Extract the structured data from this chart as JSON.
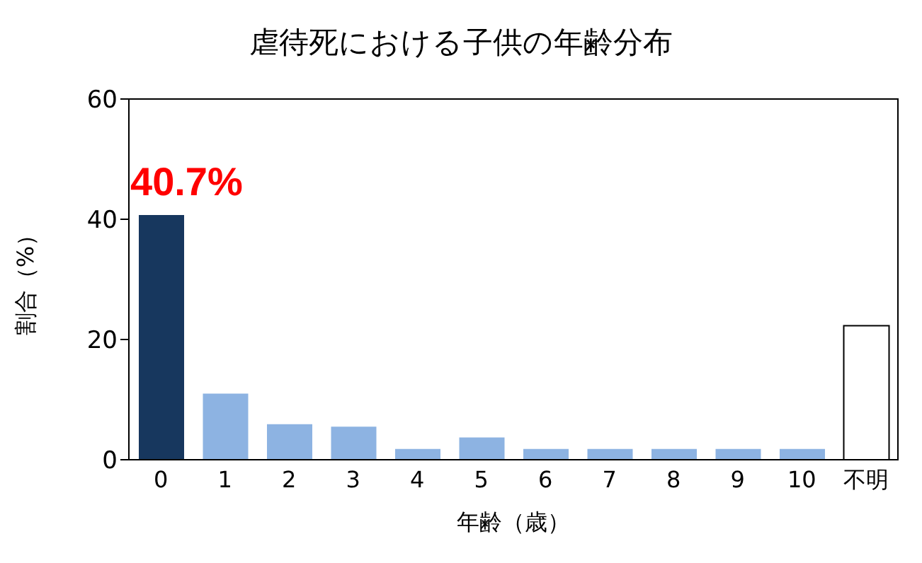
{
  "chart_data": {
    "type": "bar",
    "title": "虐待死における子供の年齢分布",
    "xlabel": "年齢（歳）",
    "ylabel": "割合（%）",
    "categories": [
      "0",
      "1",
      "2",
      "3",
      "4",
      "5",
      "6",
      "7",
      "8",
      "9",
      "10",
      "不明"
    ],
    "values": [
      40.7,
      11.0,
      5.9,
      5.5,
      1.8,
      3.7,
      1.8,
      1.8,
      1.8,
      1.8,
      1.8,
      22.3
    ],
    "colors": [
      "#17375e",
      "#8db3e2",
      "#8db3e2",
      "#8db3e2",
      "#8db3e2",
      "#8db3e2",
      "#8db3e2",
      "#8db3e2",
      "#8db3e2",
      "#8db3e2",
      "#8db3e2",
      "#ffffff"
    ],
    "value_labels": [
      "40.7%",
      null,
      null,
      null,
      null,
      null,
      null,
      null,
      null,
      null,
      null,
      null
    ],
    "ylim": [
      0,
      60
    ],
    "yticks": [
      0,
      20,
      40,
      60
    ]
  }
}
